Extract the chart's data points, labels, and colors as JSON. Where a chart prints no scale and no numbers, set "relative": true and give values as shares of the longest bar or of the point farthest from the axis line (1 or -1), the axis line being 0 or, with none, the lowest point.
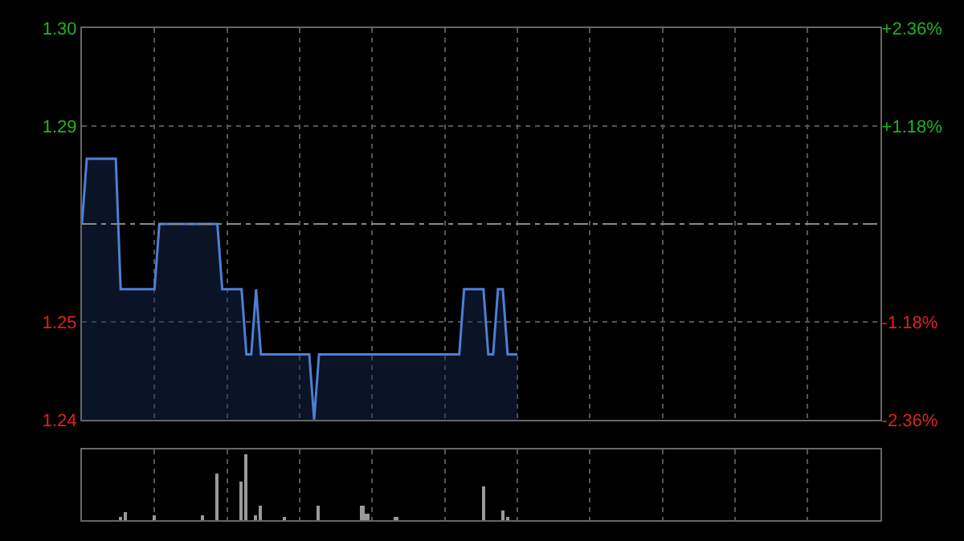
{
  "chart_data": [
    {
      "type": "area",
      "categories": [
        null,
        null,
        null,
        null,
        null,
        null,
        null,
        null,
        null,
        null,
        null,
        null,
        null,
        null,
        null,
        null,
        null,
        null,
        null,
        null,
        null,
        null,
        null,
        null,
        null,
        null,
        null,
        null,
        null,
        null,
        null,
        null,
        null,
        null,
        null,
        null,
        null,
        null,
        null,
        null,
        null,
        null,
        null,
        null,
        null,
        null,
        null,
        null,
        null,
        null,
        null,
        null,
        null,
        null,
        null,
        null,
        null,
        null,
        null,
        null,
        null,
        null,
        null,
        null,
        null,
        null,
        null,
        null,
        null,
        null,
        null,
        null,
        null,
        null,
        null,
        null,
        null,
        null,
        null,
        null,
        null,
        null,
        null,
        null,
        null,
        null,
        null,
        null,
        null,
        null,
        null,
        null,
        null,
        null,
        null,
        null,
        null,
        null,
        null,
        null,
        null,
        null,
        null,
        null,
        null,
        null,
        null,
        null,
        null,
        null,
        null,
        null,
        null,
        null,
        null,
        null,
        null,
        null,
        null,
        null,
        null,
        null,
        null,
        null,
        null,
        null,
        null,
        null,
        null,
        null,
        null,
        null,
        null,
        null,
        null,
        null,
        null,
        null,
        null,
        null,
        null,
        null,
        null,
        null,
        null,
        null,
        null,
        null,
        null,
        null,
        null,
        null,
        null,
        null,
        null,
        null,
        null,
        null,
        null,
        null,
        null,
        null,
        null,
        null,
        null,
        null
      ],
      "series": [
        {
          "color": "#4d7fd4",
          "values": [
            1.27,
            1.28,
            1.28,
            1.28,
            1.28,
            1.28,
            1.28,
            1.28,
            1.26,
            1.26,
            1.26,
            1.26,
            1.26,
            1.26,
            1.26,
            1.26,
            1.27,
            1.27,
            1.27,
            1.27,
            1.27,
            1.27,
            1.27,
            1.27,
            1.27,
            1.27,
            1.27,
            1.27,
            1.27,
            1.26,
            1.26,
            1.26,
            1.26,
            1.26,
            1.25,
            1.25,
            1.26,
            1.25,
            1.25,
            1.25,
            1.25,
            1.25,
            1.25,
            1.25,
            1.25,
            1.25,
            1.25,
            1.25,
            1.24,
            1.25,
            1.25,
            1.25,
            1.25,
            1.25,
            1.25,
            1.25,
            1.25,
            1.25,
            1.25,
            1.25,
            1.25,
            1.25,
            1.25,
            1.25,
            1.25,
            1.25,
            1.25,
            1.25,
            1.25,
            1.25,
            1.25,
            1.25,
            1.25,
            1.25,
            1.25,
            1.25,
            1.25,
            1.25,
            1.25,
            1.26,
            1.26,
            1.26,
            1.26,
            1.26,
            1.25,
            1.25,
            1.26,
            1.26,
            1.25,
            1.25,
            1.25,
            null,
            null,
            null,
            null,
            null,
            null,
            null,
            null,
            null,
            null,
            null,
            null,
            null,
            null,
            null,
            null,
            null,
            null,
            null,
            null,
            null,
            null,
            null,
            null,
            null,
            null,
            null,
            null,
            null,
            null,
            null,
            null,
            null,
            null,
            null,
            null,
            null,
            null,
            null,
            null,
            null,
            null,
            null,
            null,
            null,
            null,
            null,
            null,
            null,
            null,
            null,
            null,
            null,
            null,
            null,
            null,
            null,
            null,
            null,
            null,
            null,
            null,
            null,
            null,
            null,
            null,
            null,
            null,
            null,
            null,
            null,
            null,
            null,
            null,
            null
          ]
        }
      ],
      "ylim": [
        1.24,
        1.3
      ],
      "yticks": [
        {
          "value": 1.24,
          "label": "1.24"
        },
        {
          "value": 1.255,
          "label": "1.25"
        },
        {
          "value": 1.285,
          "label": "1.29"
        },
        {
          "value": 1.3,
          "label": "1.30"
        }
      ],
      "y2lim": [
        -2.36,
        2.36
      ],
      "y2ticks": [
        {
          "value": -2.36,
          "label": "-2.36%"
        },
        {
          "value": -1.18,
          "label": "-1.18%"
        },
        {
          "value": 1.18,
          "label": "+1.18%"
        },
        {
          "value": 2.36,
          "label": "+2.36%"
        }
      ],
      "ref_lines": [
        {
          "axis": "y",
          "value": 1.27,
          "line_style": "dashed"
        }
      ],
      "grid": true,
      "tick_labels": "y"
    },
    {
      "type": "bar",
      "relative": true,
      "categories": [
        null,
        null,
        null,
        null,
        null,
        null,
        null,
        null,
        null,
        null,
        null,
        null,
        null,
        null,
        null,
        null,
        null,
        null,
        null,
        null,
        null,
        null,
        null,
        null,
        null,
        null,
        null,
        null,
        null,
        null,
        null,
        null,
        null,
        null,
        null,
        null,
        null,
        null,
        null,
        null,
        null,
        null,
        null,
        null,
        null,
        null,
        null,
        null,
        null,
        null,
        null,
        null,
        null,
        null,
        null,
        null,
        null,
        null,
        null,
        null,
        null,
        null,
        null,
        null,
        null,
        null,
        null,
        null,
        null,
        null,
        null,
        null,
        null,
        null,
        null,
        null,
        null,
        null,
        null,
        null,
        null,
        null,
        null,
        null,
        null,
        null,
        null,
        null,
        null,
        null,
        null,
        null,
        null,
        null,
        null,
        null,
        null,
        null,
        null,
        null,
        null,
        null,
        null,
        null,
        null,
        null,
        null,
        null,
        null,
        null,
        null,
        null,
        null,
        null,
        null,
        null,
        null,
        null,
        null,
        null,
        null,
        null,
        null,
        null,
        null,
        null,
        null,
        null,
        null,
        null,
        null,
        null,
        null,
        null,
        null,
        null,
        null,
        null,
        null,
        null,
        null,
        null,
        null,
        null,
        null,
        null,
        null,
        null,
        null,
        null,
        null,
        null,
        null,
        null,
        null,
        null,
        null,
        null,
        null,
        null,
        null,
        null,
        null,
        null,
        null,
        null
      ],
      "values": [
        0,
        0,
        0,
        0,
        0,
        0,
        0,
        0,
        0.05,
        0.12,
        0,
        0,
        0,
        0,
        0,
        0.07,
        0,
        0,
        0,
        0,
        0,
        0,
        0,
        0,
        0,
        0.07,
        0,
        0,
        0.71,
        0,
        0,
        0,
        0,
        0.59,
        1,
        0,
        0.07,
        0.23,
        0,
        0,
        0,
        0,
        0.05,
        0,
        0,
        0,
        0,
        0,
        0,
        0.23,
        0,
        0,
        0,
        0,
        0,
        0,
        0,
        0,
        0.23,
        0.09,
        0,
        0,
        0,
        0,
        0,
        0.05,
        0,
        0,
        0,
        0,
        0,
        0,
        0,
        0,
        0,
        0,
        0,
        0,
        0,
        0,
        0,
        0,
        0,
        0.5,
        0,
        0,
        0,
        0.14,
        0.05,
        0,
        0,
        null,
        null,
        null,
        null,
        null,
        null,
        null,
        null,
        null,
        null,
        null,
        null,
        null,
        null,
        null,
        null,
        null,
        null,
        null,
        null,
        null,
        null,
        null,
        null,
        null,
        null,
        null,
        null,
        null,
        null,
        null,
        null,
        null,
        null,
        null,
        null,
        null,
        null,
        null,
        null,
        null,
        null,
        null,
        null,
        null,
        null,
        null,
        null,
        null,
        null,
        null,
        null,
        null,
        null,
        null,
        null,
        null,
        null,
        null,
        null,
        null,
        null,
        null,
        null,
        null,
        null,
        null,
        null,
        null,
        null,
        null,
        null,
        null,
        null,
        null
      ],
      "color": "#9a9a9a",
      "grid": "x",
      "tick_labels": false
    }
  ]
}
